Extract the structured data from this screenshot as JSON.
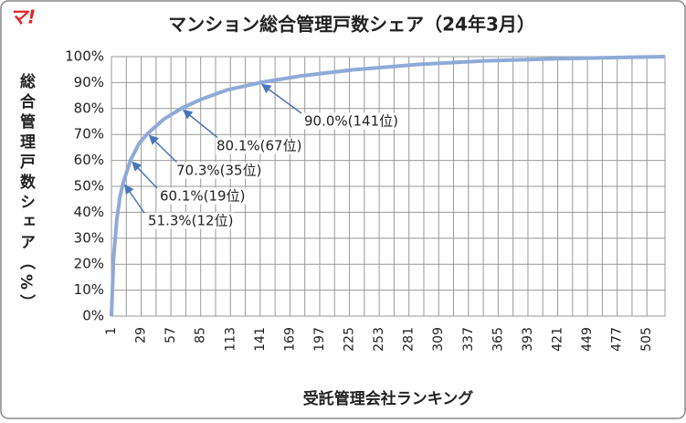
{
  "logo": "マ!",
  "chart_data": {
    "type": "line",
    "title": "マンション総合管理戸数シェア（24年3月）",
    "y_label": "総合管理戸数シェア（%）",
    "x_label": "受託管理会社ランキング",
    "x": [
      1,
      3,
      6,
      9,
      12,
      19,
      27,
      35,
      50,
      67,
      85,
      110,
      141,
      180,
      230,
      290,
      350,
      420,
      480,
      522
    ],
    "series": [
      {
        "name": "シェア",
        "color": "#8eaad8",
        "values": [
          0,
          22,
          37,
          46,
          51.3,
          60.1,
          66.5,
          70.3,
          75.8,
          80.1,
          83.5,
          87.2,
          90.0,
          92.6,
          95.0,
          97.0,
          98.3,
          99.2,
          99.7,
          100
        ]
      }
    ],
    "xlim": [
      1,
      522
    ],
    "ylim": [
      0,
      100
    ],
    "xticks": [
      1,
      29,
      57,
      85,
      113,
      141,
      169,
      197,
      225,
      253,
      281,
      309,
      337,
      365,
      393,
      421,
      449,
      477,
      505
    ],
    "yticks": [
      {
        "value": 0,
        "label": "0%"
      },
      {
        "value": 10,
        "label": "10%"
      },
      {
        "value": 20,
        "label": "20%"
      },
      {
        "value": 30,
        "label": "30%"
      },
      {
        "value": 40,
        "label": "40%"
      },
      {
        "value": 50,
        "label": "50%"
      },
      {
        "value": 60,
        "label": "60%"
      },
      {
        "value": 70,
        "label": "70%"
      },
      {
        "value": 80,
        "label": "80%"
      },
      {
        "value": 90,
        "label": "90%"
      },
      {
        "value": 100,
        "label": "100%"
      }
    ],
    "grid": true,
    "annotations": [
      {
        "text": "51.3%(12位)",
        "x": 12,
        "y": 51.3
      },
      {
        "text": "60.1%(19位)",
        "x": 19,
        "y": 60.1
      },
      {
        "text": "70.3%(35位)",
        "x": 35,
        "y": 70.3
      },
      {
        "text": "80.1%(67位)",
        "x": 67,
        "y": 80.1
      },
      {
        "text": "90.0%(141位)",
        "x": 141,
        "y": 90.0
      }
    ]
  }
}
